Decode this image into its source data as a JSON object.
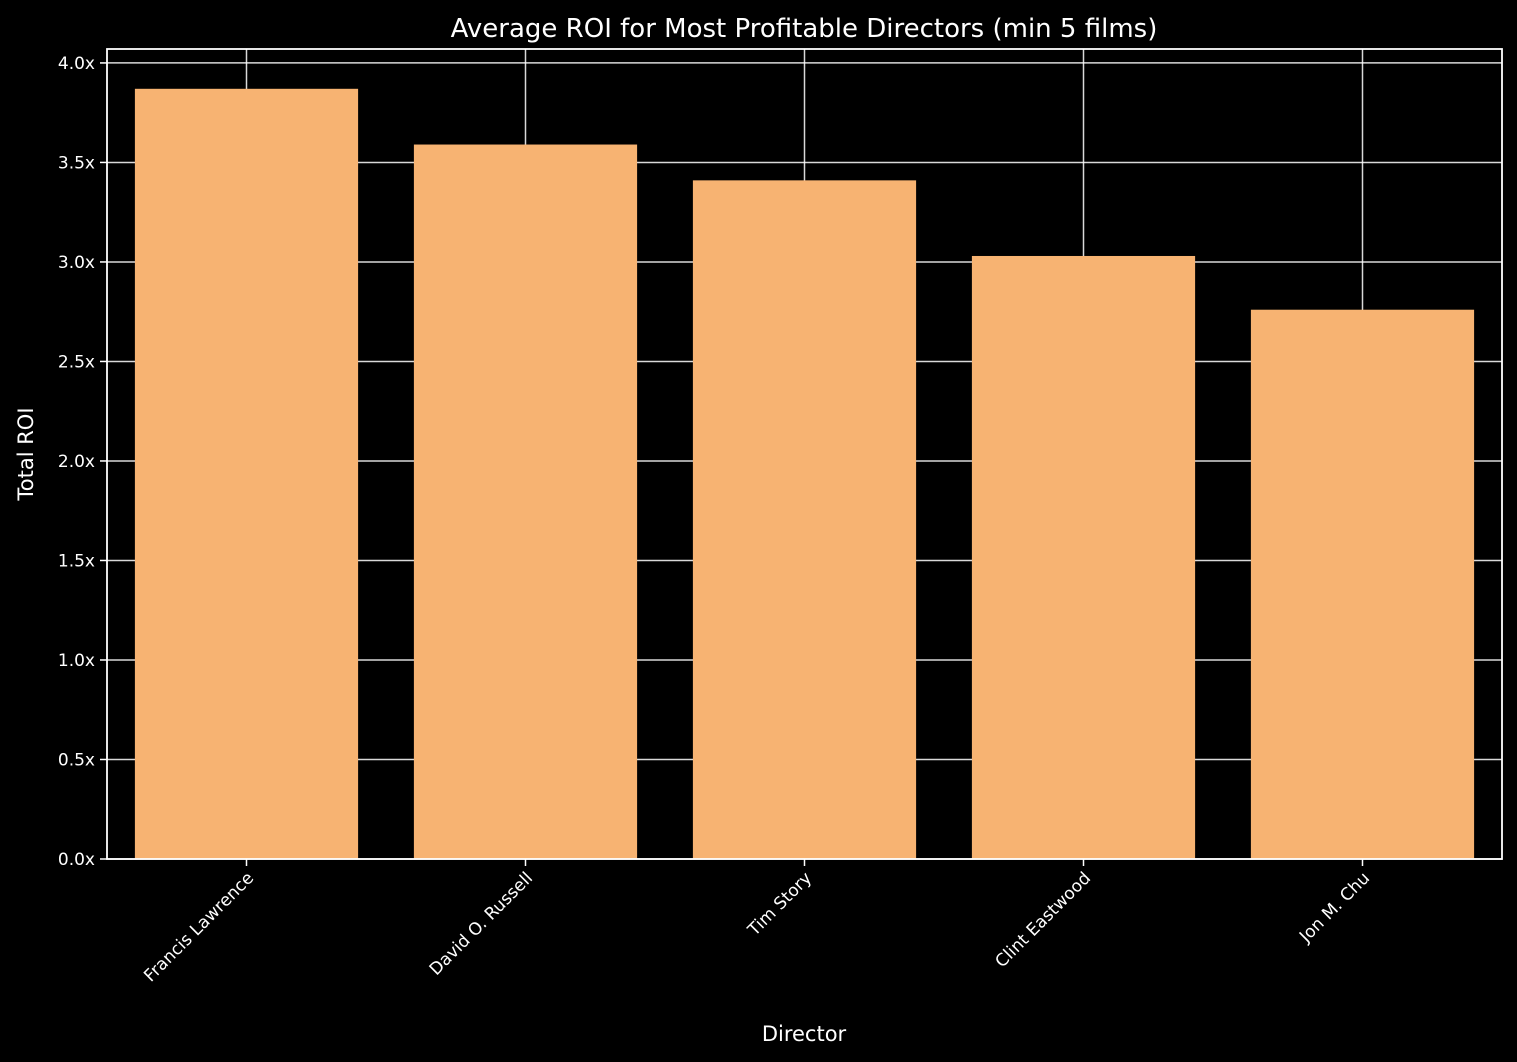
{
  "chart_data": {
    "type": "bar",
    "title": "Average ROI for Most Profitable Directors (min 5 films)",
    "xlabel": "Director",
    "ylabel": "Total ROI",
    "categories": [
      "Francis Lawrence",
      "David O. Russell",
      "Tim Story",
      "Clint Eastwood",
      "Jon M. Chu"
    ],
    "values": [
      3.87,
      3.59,
      3.41,
      3.03,
      2.76
    ],
    "ylim": [
      0,
      4.07
    ],
    "yticks": [
      0.0,
      0.5,
      1.0,
      1.5,
      2.0,
      2.5,
      3.0,
      3.5,
      4.0
    ],
    "ytick_labels": [
      "0.0x",
      "0.5x",
      "1.0x",
      "1.5x",
      "2.0x",
      "2.5x",
      "3.0x",
      "3.5x",
      "4.0x"
    ],
    "grid": true,
    "bar_color": "#f7b372",
    "background_color": "#000000",
    "foreground_color": "#ffffff"
  }
}
